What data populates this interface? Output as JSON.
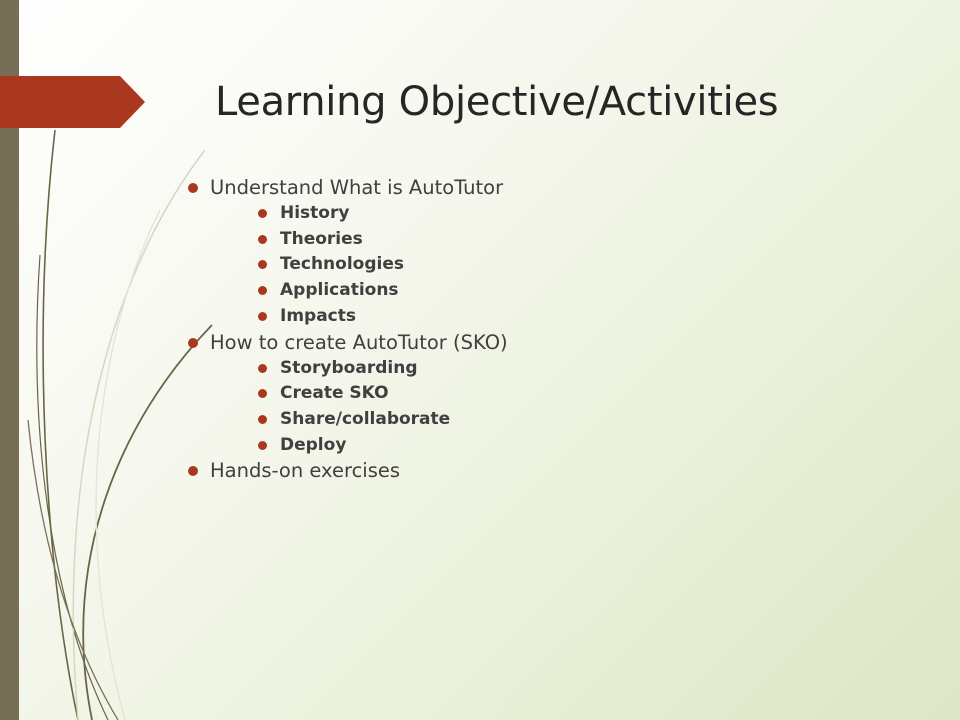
{
  "slide": {
    "title": "Learning Objective/Activities",
    "items": [
      {
        "text": "Understand What is AutoTutor",
        "subitems": [
          "History",
          "Theories",
          "Technologies",
          "Applications",
          "Impacts"
        ]
      },
      {
        "text": "How to create AutoTutor (SKO)",
        "subitems": [
          "Storyboarding",
          "Create SKO",
          "Share/collaborate",
          "Deploy"
        ]
      },
      {
        "text": "Hands-on exercises",
        "subitems": []
      }
    ]
  },
  "colors": {
    "accent": "#a9381e",
    "left_bar": "#776f55",
    "text": "#404040",
    "title": "#262626"
  }
}
